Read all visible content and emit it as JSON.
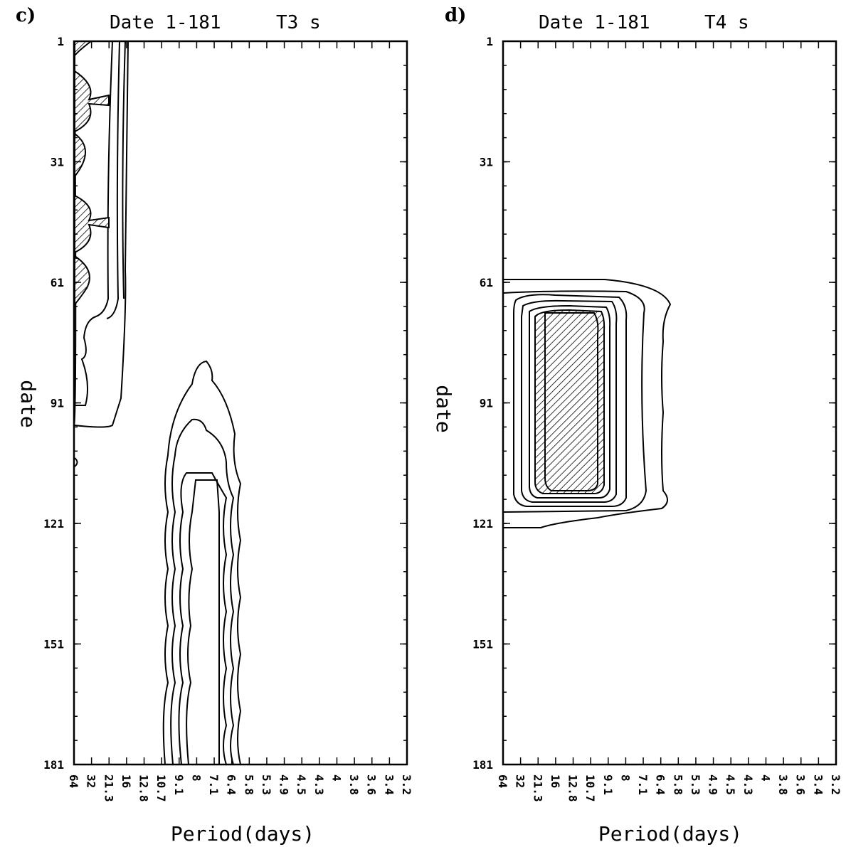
{
  "chart_data": [
    {
      "type": "contour",
      "panel_label": "c)",
      "title_left": "Date 1-181",
      "title_right": "T3 s",
      "xlabel": "Period(days)",
      "ylabel": "date",
      "x_tick_labels": [
        "64",
        "32",
        "21.3",
        "16",
        "12.8",
        "10.7",
        "9.1",
        "8",
        "7.1",
        "6.4",
        "5.8",
        "5.3",
        "4.9",
        "4.5",
        "4.3",
        "4",
        "3.8",
        "3.6",
        "3.4",
        "3.2"
      ],
      "y_tick_labels": [
        "1",
        "31",
        "61",
        "91",
        "121",
        "151",
        "181"
      ],
      "ylim": [
        1,
        181
      ],
      "hatched_regions": [
        {
          "description": "scalloped patch near period 64-32",
          "date_range": [
            1,
            66
          ]
        }
      ],
      "contour_features": [
        {
          "period_range": [
            "64",
            "16"
          ],
          "date_range": [
            1,
            97
          ]
        },
        {
          "period_range": [
            "9.1",
            "5.8"
          ],
          "date_range": [
            82,
            181
          ]
        }
      ]
    },
    {
      "type": "contour",
      "panel_label": "d)",
      "title_left": "Date 1-181",
      "title_right": "T4 s",
      "xlabel": "Period(days)",
      "ylabel": "date",
      "x_tick_labels": [
        "64",
        "32",
        "21.3",
        "16",
        "12.8",
        "10.7",
        "9.1",
        "8",
        "7.1",
        "6.4",
        "5.8",
        "5.3",
        "4.9",
        "4.5",
        "4.3",
        "4",
        "3.8",
        "3.6",
        "3.4",
        "3.2"
      ],
      "y_tick_labels": [
        "1",
        "31",
        "61",
        "91",
        "121",
        "151",
        "181"
      ],
      "ylim": [
        1,
        181
      ],
      "hatched_regions": [
        {
          "period_range": [
            "21.3",
            "9.1"
          ],
          "date_range": [
            68,
            115
          ]
        }
      ],
      "contour_features": [
        {
          "period_range": [
            "64",
            "5.8"
          ],
          "date_range": [
            61,
            121
          ]
        }
      ]
    }
  ]
}
